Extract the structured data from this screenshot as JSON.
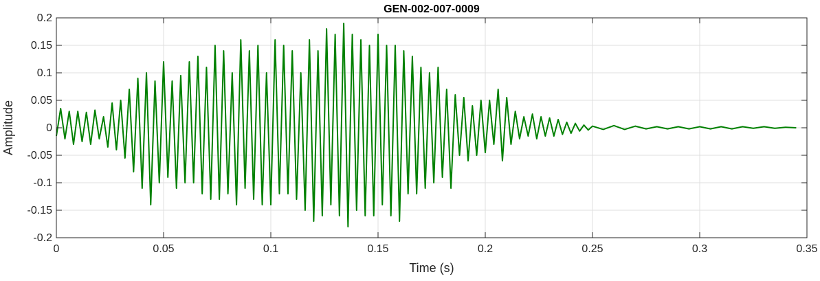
{
  "chart_data": {
    "type": "line",
    "title": "GEN-002-007-0009",
    "xlabel": "Time (s)",
    "ylabel": "Amplitude",
    "xlim": [
      0,
      0.35
    ],
    "ylim": [
      -0.2,
      0.2
    ],
    "grid": true,
    "legend": "none",
    "line_color": "#008000",
    "x_ticks": [
      0,
      0.05,
      0.1,
      0.15,
      0.2,
      0.25,
      0.3,
      0.35
    ],
    "x_tick_labels": [
      "0",
      "0.05",
      "0.1",
      "0.15",
      "0.2",
      "0.25",
      "0.3",
      "0.35"
    ],
    "y_ticks": [
      -0.2,
      -0.15,
      -0.1,
      -0.05,
      0,
      0.05,
      0.1,
      0.15,
      0.2
    ],
    "y_tick_labels": [
      "-0.2",
      "-0.15",
      "-0.1",
      "-0.05",
      "0",
      "0.05",
      "0.1",
      "0.15",
      "0.2"
    ],
    "series": [
      {
        "x": [
          0,
          0.002,
          0.004,
          0.006,
          0.008,
          0.01,
          0.012,
          0.014,
          0.016,
          0.018,
          0.02,
          0.022,
          0.024,
          0.026,
          0.028,
          0.03,
          0.032,
          0.034,
          0.036,
          0.038,
          0.04,
          0.042,
          0.044,
          0.046,
          0.048,
          0.05,
          0.052,
          0.054,
          0.056,
          0.058,
          0.06,
          0.062,
          0.064,
          0.066,
          0.068,
          0.07,
          0.072,
          0.074,
          0.076,
          0.078,
          0.08,
          0.082,
          0.084,
          0.086,
          0.088,
          0.09,
          0.092,
          0.094,
          0.096,
          0.098,
          0.1,
          0.102,
          0.104,
          0.106,
          0.108,
          0.11,
          0.112,
          0.114,
          0.116,
          0.118,
          0.12,
          0.122,
          0.124,
          0.126,
          0.128,
          0.13,
          0.132,
          0.134,
          0.136,
          0.138,
          0.14,
          0.142,
          0.144,
          0.146,
          0.148,
          0.15,
          0.152,
          0.154,
          0.156,
          0.158,
          0.16,
          0.162,
          0.164,
          0.166,
          0.168,
          0.17,
          0.172,
          0.174,
          0.176,
          0.178,
          0.18,
          0.182,
          0.184,
          0.186,
          0.188,
          0.19,
          0.192,
          0.194,
          0.196,
          0.198,
          0.2,
          0.202,
          0.204,
          0.206,
          0.208,
          0.21,
          0.212,
          0.214,
          0.216,
          0.218,
          0.22,
          0.222,
          0.224,
          0.226,
          0.228,
          0.23,
          0.232,
          0.234,
          0.236,
          0.238,
          0.24,
          0.242,
          0.244,
          0.246,
          0.248,
          0.25,
          0.255,
          0.26,
          0.265,
          0.27,
          0.275,
          0.28,
          0.285,
          0.29,
          0.295,
          0.3,
          0.305,
          0.31,
          0.315,
          0.32,
          0.325,
          0.33,
          0.335,
          0.34,
          0.345
        ],
        "y": [
          -0.015,
          0.035,
          -0.02,
          0.03,
          -0.03,
          0.03,
          -0.025,
          0.028,
          -0.03,
          0.032,
          -0.02,
          0.02,
          -0.035,
          0.045,
          -0.04,
          0.05,
          -0.055,
          0.07,
          -0.08,
          0.09,
          -0.11,
          0.1,
          -0.14,
          0.085,
          -0.1,
          0.12,
          -0.09,
          0.085,
          -0.11,
          0.095,
          -0.1,
          0.12,
          -0.1,
          0.13,
          -0.12,
          0.11,
          -0.13,
          0.15,
          -0.13,
          0.14,
          -0.12,
          0.1,
          -0.14,
          0.16,
          -0.11,
          0.14,
          -0.13,
          0.15,
          -0.14,
          0.1,
          -0.14,
          0.16,
          -0.12,
          0.15,
          -0.12,
          0.14,
          -0.13,
          0.1,
          -0.15,
          0.16,
          -0.17,
          0.14,
          -0.16,
          0.18,
          -0.14,
          0.17,
          -0.16,
          0.19,
          -0.18,
          0.17,
          -0.15,
          0.16,
          -0.16,
          0.15,
          -0.16,
          0.17,
          -0.14,
          0.15,
          -0.16,
          0.15,
          -0.17,
          0.14,
          -0.12,
          0.13,
          -0.12,
          0.11,
          -0.11,
          0.1,
          -0.1,
          0.11,
          -0.09,
          0.07,
          -0.11,
          0.06,
          -0.05,
          0.055,
          -0.06,
          0.04,
          -0.05,
          0.05,
          -0.045,
          0.05,
          -0.03,
          0.07,
          -0.06,
          0.055,
          -0.03,
          0.03,
          -0.02,
          0.02,
          -0.015,
          0.025,
          -0.02,
          0.02,
          -0.015,
          0.018,
          -0.015,
          0.015,
          -0.012,
          0.01,
          -0.01,
          0.008,
          -0.006,
          0.005,
          -0.004,
          0.003,
          -0.003,
          0.004,
          -0.003,
          0.003,
          -0.002,
          0.002,
          -0.002,
          0.002,
          -0.002,
          0.002,
          -0.002,
          0.002,
          -0.002,
          0.002,
          -0.001,
          0.002,
          -0.001,
          0.001,
          0.0
        ]
      }
    ]
  }
}
